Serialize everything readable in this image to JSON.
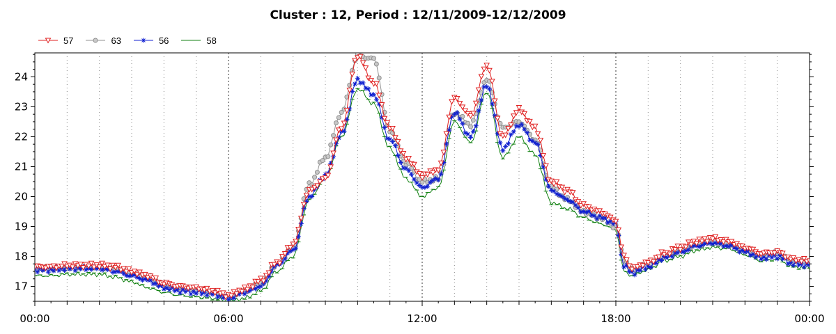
{
  "chart_data": {
    "type": "line",
    "title": "Cluster : 12, Period : 12/11/2009-12/12/2009",
    "xlabel": "",
    "ylabel": "",
    "x_ticks": [
      "00:00",
      "06:00",
      "12:00",
      "18:00",
      "00:00"
    ],
    "y_ticks": [
      17,
      18,
      19,
      20,
      21,
      22,
      23,
      24
    ],
    "xlim_hours": [
      0,
      24
    ],
    "ylim": [
      16.5,
      24.8
    ],
    "grid": "vertical dotted lines every hour",
    "legend_position": "top-left",
    "x_hours": [
      0,
      0.5,
      1,
      1.5,
      2,
      2.5,
      3,
      3.5,
      4,
      4.5,
      5,
      5.5,
      6,
      6.5,
      7,
      7.5,
      8,
      8.5,
      9,
      9.5,
      10,
      10.5,
      11,
      11.5,
      12,
      12.5,
      13,
      13.5,
      14,
      14.5,
      15,
      15.5,
      16,
      16.5,
      17,
      17.5,
      18,
      18.25,
      18.5,
      19,
      19.5,
      20,
      20.5,
      21,
      21.5,
      22,
      22.5,
      23,
      23.5,
      24
    ],
    "series": [
      {
        "name": "57",
        "color": "#e02020",
        "marker": "triangle-down",
        "values": [
          17.65,
          17.65,
          17.7,
          17.7,
          17.7,
          17.65,
          17.5,
          17.35,
          17.1,
          17.0,
          16.95,
          16.85,
          16.7,
          16.9,
          17.2,
          17.8,
          18.4,
          20.2,
          20.6,
          22.3,
          24.7,
          23.8,
          22.3,
          21.3,
          20.7,
          20.9,
          23.3,
          22.7,
          24.4,
          22.0,
          22.9,
          22.3,
          20.5,
          20.2,
          19.7,
          19.5,
          19.2,
          18.0,
          17.6,
          17.8,
          18.1,
          18.3,
          18.5,
          18.6,
          18.5,
          18.3,
          18.1,
          18.15,
          17.9,
          17.85
        ]
      },
      {
        "name": "63",
        "color": "#909090",
        "marker": "circle",
        "values": [
          17.6,
          17.6,
          17.6,
          17.65,
          17.65,
          17.6,
          17.45,
          17.3,
          17.05,
          16.95,
          16.9,
          16.8,
          16.65,
          16.85,
          17.1,
          17.75,
          18.3,
          20.4,
          21.3,
          22.8,
          24.7,
          24.6,
          22.2,
          21.1,
          20.5,
          20.6,
          22.8,
          22.4,
          23.9,
          22.3,
          22.5,
          21.9,
          20.3,
          19.9,
          19.5,
          19.3,
          19.0,
          17.9,
          17.55,
          17.75,
          18.0,
          18.2,
          18.4,
          18.5,
          18.4,
          18.2,
          18.05,
          18.1,
          17.85,
          17.8
        ]
      },
      {
        "name": "56",
        "color": "#1020d0",
        "marker": "asterisk",
        "values": [
          17.55,
          17.55,
          17.6,
          17.6,
          17.6,
          17.5,
          17.35,
          17.2,
          16.95,
          16.85,
          16.8,
          16.75,
          16.6,
          16.8,
          17.0,
          17.7,
          18.2,
          20.0,
          20.7,
          22.1,
          23.9,
          23.4,
          21.9,
          20.9,
          20.3,
          20.6,
          22.8,
          22.0,
          23.7,
          21.6,
          22.4,
          21.8,
          20.2,
          19.9,
          19.5,
          19.3,
          19.1,
          17.7,
          17.45,
          17.65,
          17.95,
          18.15,
          18.35,
          18.45,
          18.35,
          18.15,
          17.95,
          18.0,
          17.75,
          17.7
        ]
      },
      {
        "name": "58",
        "color": "#108010",
        "marker": "none",
        "values": [
          17.35,
          17.35,
          17.4,
          17.4,
          17.4,
          17.3,
          17.15,
          16.95,
          16.8,
          16.7,
          16.65,
          16.6,
          16.5,
          16.6,
          16.85,
          17.5,
          18.0,
          19.9,
          20.6,
          22.0,
          23.6,
          23.1,
          21.6,
          20.6,
          20.0,
          20.3,
          22.5,
          21.8,
          23.5,
          21.3,
          22.0,
          21.4,
          19.8,
          19.6,
          19.3,
          19.1,
          18.9,
          17.5,
          17.35,
          17.55,
          17.85,
          18.0,
          18.2,
          18.3,
          18.25,
          18.05,
          17.85,
          17.9,
          17.65,
          17.6
        ]
      }
    ]
  }
}
